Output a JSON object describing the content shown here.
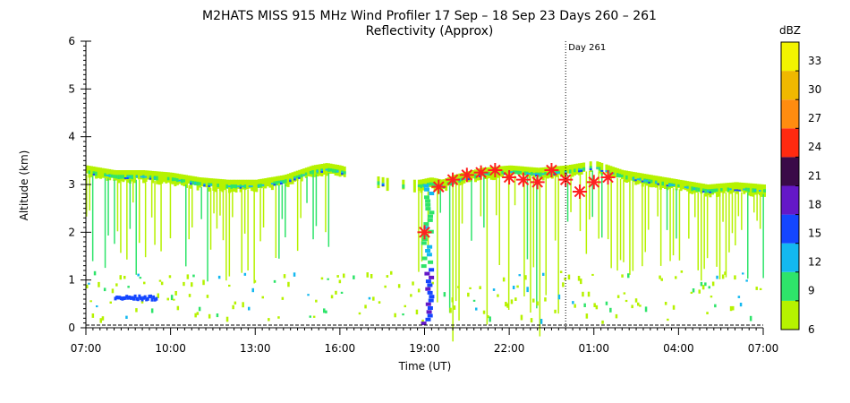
{
  "colors": {
    "background": "#ffffff",
    "marker": "#ff2020",
    "colorbar": [
      "#b6f200",
      "#2ee46a",
      "#13b8f0",
      "#1446ff",
      "#6418c8",
      "#3a0a48",
      "#ff2a10",
      "#ff8c10",
      "#f0b800",
      "#f2f400"
    ]
  },
  "chart_data": {
    "type": "heatmap",
    "title": "M2HATS MISS 915 MHz Wind Profiler  17 Sep – 18 Sep 23 Days 260 – 261",
    "subtitle": "Reflectivity (Approx)",
    "xlabel": "Time (UT)",
    "ylabel": "Altitude (km)",
    "xlim": [
      7,
      31
    ],
    "ylim": [
      0,
      6
    ],
    "x_ticks": [
      "07:00",
      "10:00",
      "13:00",
      "16:00",
      "19:00",
      "22:00",
      "01:00",
      "04:00",
      "07:00"
    ],
    "x_tick_hours": [
      7,
      10,
      13,
      16,
      19,
      22,
      25,
      28,
      31
    ],
    "y_ticks": [
      "0",
      "1",
      "2",
      "3",
      "4",
      "5",
      "6"
    ],
    "day_marker": {
      "x_hour": 24,
      "label": "Day 261"
    },
    "colorbar": {
      "label": "dBZ",
      "tick_labels": [
        "6",
        "9",
        "12",
        "15",
        "18",
        "21",
        "24",
        "27",
        "30",
        "33"
      ],
      "levels": [
        6,
        9,
        12,
        15,
        18,
        21,
        24,
        27,
        30,
        33,
        36
      ]
    },
    "boundary_layer_top": {
      "x_hour": [
        7.0,
        7.5,
        8.0,
        9.0,
        10.0,
        11.0,
        12.0,
        13.0,
        14.0,
        15.0,
        15.5,
        16.0,
        16.5,
        17.0,
        18.0,
        18.8,
        19.2,
        19.6,
        20.0,
        21.0,
        22.0,
        23.0,
        24.0,
        25.0,
        26.0,
        27.0,
        28.0,
        29.0,
        30.0,
        31.0
      ],
      "altitude_km": [
        3.3,
        3.25,
        3.2,
        3.2,
        3.15,
        3.05,
        3.0,
        3.0,
        3.1,
        3.3,
        3.35,
        3.3,
        3.2,
        3.1,
        3.0,
        3.0,
        3.05,
        3.0,
        3.1,
        3.25,
        3.3,
        3.25,
        3.3,
        3.4,
        3.2,
        3.1,
        3.0,
        2.9,
        2.95,
        2.9
      ]
    },
    "markers": {
      "symbol": "asterisk",
      "x_hour": [
        19.0,
        19.5,
        20.0,
        20.5,
        21.0,
        21.5,
        22.0,
        22.5,
        23.0,
        23.5,
        24.0,
        24.5,
        25.0,
        25.5
      ],
      "altitude_km": [
        2.0,
        2.95,
        3.1,
        3.2,
        3.25,
        3.3,
        3.15,
        3.1,
        3.05,
        3.3,
        3.1,
        2.85,
        3.05,
        3.15
      ]
    }
  }
}
